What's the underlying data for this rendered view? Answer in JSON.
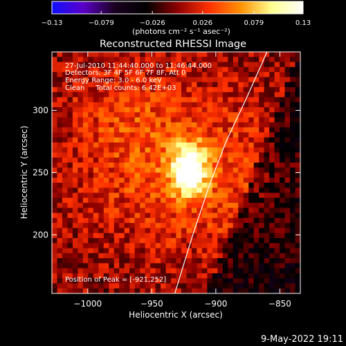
{
  "chart_data": {
    "type": "heatmap",
    "title": "Reconstructed RHESSI Image",
    "xlabel": "Heliocentric X (arcsec)",
    "ylabel": "Heliocentric Y (arcsec)",
    "xlim": [
      -1028,
      -834
    ],
    "ylim": [
      153,
      347
    ],
    "x_ticks": [
      -1000,
      -950,
      -900,
      -850
    ],
    "x_tick_labels": [
      "−1000",
      "−950",
      "−900",
      "−850"
    ],
    "y_ticks": [
      200,
      250,
      300
    ],
    "y_tick_labels": [
      "200",
      "250",
      "300"
    ],
    "colorbar": {
      "range": [
        -0.13,
        0.13
      ],
      "ticks": [
        -0.13,
        -0.079,
        -0.026,
        0.026,
        0.079,
        0.13
      ],
      "tick_labels": [
        "−0.13",
        "−0.079",
        "−0.026",
        "0.026",
        "0.079",
        "0.13"
      ],
      "unit_label": "(photons cm⁻² s⁻¹ asec⁻²)",
      "colors": [
        "#1010ff",
        "#5b00c8",
        "#1a0020",
        "#000000",
        "#8c0000",
        "#ff3000",
        "#ff9000",
        "#ffff90",
        "#ffffff"
      ]
    },
    "annotations": [
      "27-Jul-2010 11:44:40.000 to 11:46:44.000",
      "Detectors: 3F 4F 5F 6F 7F 8F, Att 0",
      "Energy Range: 3.0 - 6.0 keV",
      "Clean     Total counts: 6.42E+03"
    ],
    "peak_label": "Position of Peak = [-921,252]",
    "peak": {
      "x": -921,
      "y": 252,
      "value": 0.13
    },
    "limb_curve": [
      [
        -932,
        153
      ],
      [
        -918,
        200
      ],
      [
        -905,
        240
      ],
      [
        -892,
        275
      ],
      [
        -876,
        310
      ],
      [
        -860,
        347
      ]
    ],
    "timestamp": "9-May-2022 19:11"
  }
}
